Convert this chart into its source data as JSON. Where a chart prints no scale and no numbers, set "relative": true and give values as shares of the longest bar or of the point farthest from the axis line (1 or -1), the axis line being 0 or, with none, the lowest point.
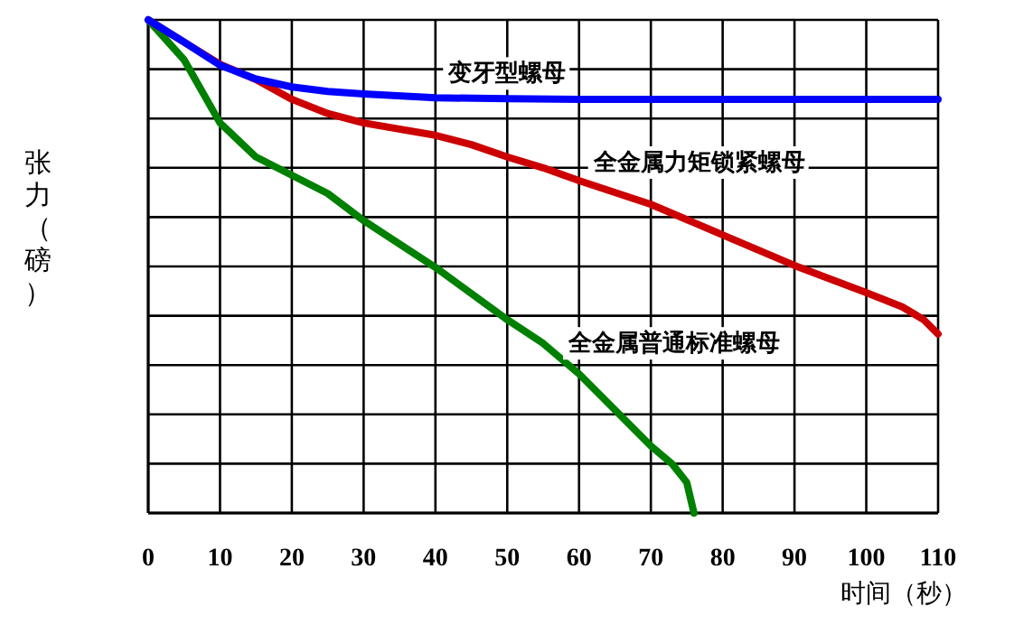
{
  "chart_data": {
    "type": "line",
    "relative": true,
    "xlabel": "时间（秒）",
    "ylabel": "张力（磅）",
    "xlim": [
      0,
      110
    ],
    "xticks": [
      0,
      10,
      20,
      30,
      40,
      50,
      60,
      70,
      80,
      90,
      100,
      110
    ],
    "grid": true,
    "legend": false,
    "marker": "none",
    "line_style": "solid",
    "series": [
      {
        "name": "变牙型螺母",
        "color": "#0000ff",
        "x": [
          0,
          5,
          10,
          15,
          20,
          25,
          30,
          40,
          50,
          60,
          70,
          80,
          90,
          100,
          110
        ],
        "values": [
          1,
          0.955,
          0.908,
          0.88,
          0.864,
          0.855,
          0.85,
          0.842,
          0.84,
          0.839,
          0.839,
          0.839,
          0.839,
          0.839,
          0.839
        ]
      },
      {
        "name": "全金属力矩锁紧螺母",
        "color": "#cc0000",
        "x": [
          0,
          5,
          10,
          15,
          20,
          25,
          30,
          40,
          45,
          50,
          55,
          60,
          70,
          80,
          90,
          100,
          105,
          108,
          110
        ],
        "values": [
          1,
          0.955,
          0.91,
          0.879,
          0.839,
          0.81,
          0.791,
          0.766,
          0.747,
          0.722,
          0.7,
          0.674,
          0.626,
          0.564,
          0.502,
          0.447,
          0.418,
          0.392,
          0.363
        ]
      },
      {
        "name": "全金属普通标准螺母",
        "color": "#008000",
        "x": [
          0,
          5,
          10,
          15,
          20,
          25,
          30,
          40,
          50,
          55,
          60,
          70,
          73,
          75,
          76
        ],
        "values": [
          1,
          0.919,
          0.791,
          0.722,
          0.685,
          0.648,
          0.593,
          0.498,
          0.392,
          0.344,
          0.282,
          0.136,
          0.099,
          0.062,
          0
        ]
      }
    ]
  }
}
